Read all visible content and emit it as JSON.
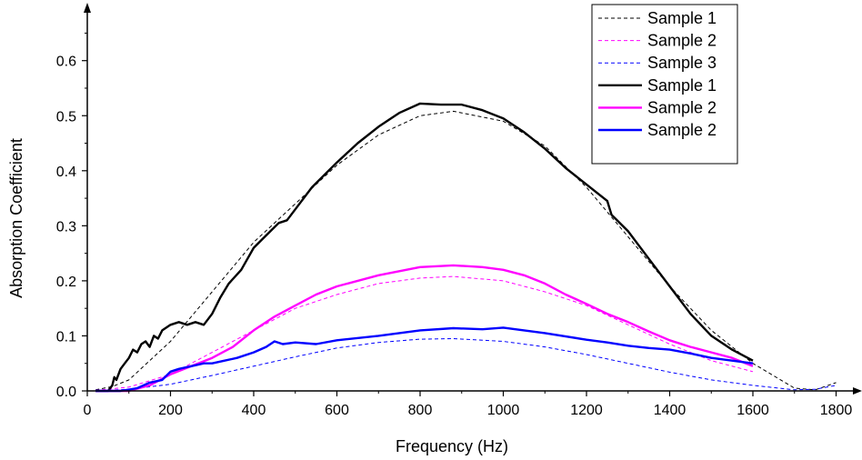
{
  "chart_data": {
    "type": "line",
    "xlabel": "Frequency (Hz)",
    "ylabel": "Absorption Coefficient",
    "xlim": [
      0,
      1900
    ],
    "ylim": [
      0,
      0.69
    ],
    "x_ticks": [
      "0",
      "200",
      "400",
      "600",
      "800",
      "1000",
      "1200",
      "1400",
      "1600",
      "1800"
    ],
    "y_ticks": [
      "0.0",
      "0.1",
      "0.2",
      "0.3",
      "0.4",
      "0.5",
      "0.6"
    ],
    "legend_position": "top-right",
    "series": [
      {
        "name": "Sample 1",
        "style": "dashed",
        "color": "#000000",
        "points": [
          [
            20,
            0.002
          ],
          [
            60,
            0.008
          ],
          [
            100,
            0.02
          ],
          [
            200,
            0.09
          ],
          [
            300,
            0.18
          ],
          [
            400,
            0.27
          ],
          [
            500,
            0.34
          ],
          [
            600,
            0.41
          ],
          [
            700,
            0.465
          ],
          [
            800,
            0.5
          ],
          [
            880,
            0.508
          ],
          [
            1000,
            0.49
          ],
          [
            1100,
            0.445
          ],
          [
            1200,
            0.37
          ],
          [
            1300,
            0.28
          ],
          [
            1400,
            0.19
          ],
          [
            1500,
            0.11
          ],
          [
            1600,
            0.05
          ],
          [
            1700,
            0.005
          ],
          [
            1750,
            0.002
          ],
          [
            1800,
            0.015
          ]
        ]
      },
      {
        "name": "Sample 2",
        "style": "dashed",
        "color": "#ff00ff",
        "points": [
          [
            20,
            0.001
          ],
          [
            100,
            0.007
          ],
          [
            200,
            0.03
          ],
          [
            300,
            0.07
          ],
          [
            400,
            0.11
          ],
          [
            500,
            0.15
          ],
          [
            600,
            0.175
          ],
          [
            700,
            0.195
          ],
          [
            800,
            0.205
          ],
          [
            880,
            0.208
          ],
          [
            1000,
            0.2
          ],
          [
            1100,
            0.18
          ],
          [
            1200,
            0.155
          ],
          [
            1300,
            0.12
          ],
          [
            1400,
            0.085
          ],
          [
            1500,
            0.055
          ],
          [
            1600,
            0.035
          ]
        ]
      },
      {
        "name": "Sample 3",
        "style": "dashed",
        "color": "#0000ff",
        "points": [
          [
            20,
            0.0
          ],
          [
            100,
            0.003
          ],
          [
            200,
            0.012
          ],
          [
            300,
            0.028
          ],
          [
            400,
            0.045
          ],
          [
            500,
            0.062
          ],
          [
            600,
            0.078
          ],
          [
            700,
            0.088
          ],
          [
            800,
            0.094
          ],
          [
            880,
            0.095
          ],
          [
            1000,
            0.09
          ],
          [
            1100,
            0.08
          ],
          [
            1200,
            0.066
          ],
          [
            1300,
            0.05
          ],
          [
            1400,
            0.034
          ],
          [
            1500,
            0.02
          ],
          [
            1600,
            0.01
          ],
          [
            1700,
            0.002
          ],
          [
            1750,
            0.003
          ],
          [
            1800,
            0.01
          ]
        ]
      },
      {
        "name": "Sample 1",
        "style": "solid",
        "color": "#000000",
        "points": [
          [
            20,
            0.0
          ],
          [
            50,
            0.0
          ],
          [
            60,
            0.01
          ],
          [
            65,
            0.025
          ],
          [
            70,
            0.02
          ],
          [
            80,
            0.04
          ],
          [
            90,
            0.05
          ],
          [
            100,
            0.06
          ],
          [
            110,
            0.075
          ],
          [
            120,
            0.07
          ],
          [
            130,
            0.085
          ],
          [
            140,
            0.09
          ],
          [
            150,
            0.08
          ],
          [
            160,
            0.1
          ],
          [
            170,
            0.095
          ],
          [
            180,
            0.11
          ],
          [
            200,
            0.12
          ],
          [
            220,
            0.125
          ],
          [
            240,
            0.12
          ],
          [
            260,
            0.125
          ],
          [
            280,
            0.12
          ],
          [
            300,
            0.14
          ],
          [
            320,
            0.17
          ],
          [
            340,
            0.195
          ],
          [
            370,
            0.22
          ],
          [
            400,
            0.26
          ],
          [
            420,
            0.275
          ],
          [
            440,
            0.29
          ],
          [
            460,
            0.305
          ],
          [
            480,
            0.31
          ],
          [
            500,
            0.33
          ],
          [
            540,
            0.37
          ],
          [
            600,
            0.415
          ],
          [
            650,
            0.45
          ],
          [
            700,
            0.48
          ],
          [
            750,
            0.505
          ],
          [
            800,
            0.522
          ],
          [
            850,
            0.52
          ],
          [
            900,
            0.52
          ],
          [
            950,
            0.51
          ],
          [
            1000,
            0.495
          ],
          [
            1050,
            0.47
          ],
          [
            1100,
            0.44
          ],
          [
            1150,
            0.405
          ],
          [
            1200,
            0.375
          ],
          [
            1250,
            0.345
          ],
          [
            1260,
            0.32
          ],
          [
            1300,
            0.29
          ],
          [
            1350,
            0.24
          ],
          [
            1400,
            0.19
          ],
          [
            1450,
            0.14
          ],
          [
            1500,
            0.1
          ],
          [
            1550,
            0.075
          ],
          [
            1600,
            0.055
          ]
        ]
      },
      {
        "name": "Sample 2",
        "style": "solid",
        "color": "#ff00ff",
        "points": [
          [
            20,
            0.0
          ],
          [
            100,
            0.0
          ],
          [
            150,
            0.01
          ],
          [
            200,
            0.03
          ],
          [
            250,
            0.045
          ],
          [
            300,
            0.06
          ],
          [
            350,
            0.08
          ],
          [
            400,
            0.11
          ],
          [
            450,
            0.135
          ],
          [
            500,
            0.155
          ],
          [
            550,
            0.175
          ],
          [
            600,
            0.19
          ],
          [
            700,
            0.21
          ],
          [
            800,
            0.225
          ],
          [
            880,
            0.228
          ],
          [
            950,
            0.225
          ],
          [
            1000,
            0.22
          ],
          [
            1050,
            0.21
          ],
          [
            1100,
            0.195
          ],
          [
            1150,
            0.175
          ],
          [
            1200,
            0.158
          ],
          [
            1250,
            0.14
          ],
          [
            1300,
            0.125
          ],
          [
            1350,
            0.108
          ],
          [
            1400,
            0.092
          ],
          [
            1450,
            0.08
          ],
          [
            1500,
            0.07
          ],
          [
            1550,
            0.06
          ],
          [
            1600,
            0.045
          ]
        ]
      },
      {
        "name": "Sample 2",
        "style": "solid",
        "color": "#0000ff",
        "points": [
          [
            20,
            0.0
          ],
          [
            80,
            0.0
          ],
          [
            120,
            0.005
          ],
          [
            150,
            0.015
          ],
          [
            180,
            0.02
          ],
          [
            200,
            0.035
          ],
          [
            220,
            0.04
          ],
          [
            250,
            0.045
          ],
          [
            280,
            0.05
          ],
          [
            300,
            0.05
          ],
          [
            330,
            0.055
          ],
          [
            360,
            0.06
          ],
          [
            400,
            0.07
          ],
          [
            430,
            0.08
          ],
          [
            450,
            0.09
          ],
          [
            470,
            0.085
          ],
          [
            500,
            0.088
          ],
          [
            550,
            0.085
          ],
          [
            600,
            0.092
          ],
          [
            700,
            0.1
          ],
          [
            800,
            0.11
          ],
          [
            880,
            0.114
          ],
          [
            950,
            0.112
          ],
          [
            1000,
            0.115
          ],
          [
            1100,
            0.105
          ],
          [
            1200,
            0.093
          ],
          [
            1250,
            0.088
          ],
          [
            1300,
            0.082
          ],
          [
            1350,
            0.078
          ],
          [
            1400,
            0.075
          ],
          [
            1450,
            0.068
          ],
          [
            1500,
            0.06
          ],
          [
            1550,
            0.055
          ],
          [
            1600,
            0.05
          ]
        ]
      }
    ]
  }
}
